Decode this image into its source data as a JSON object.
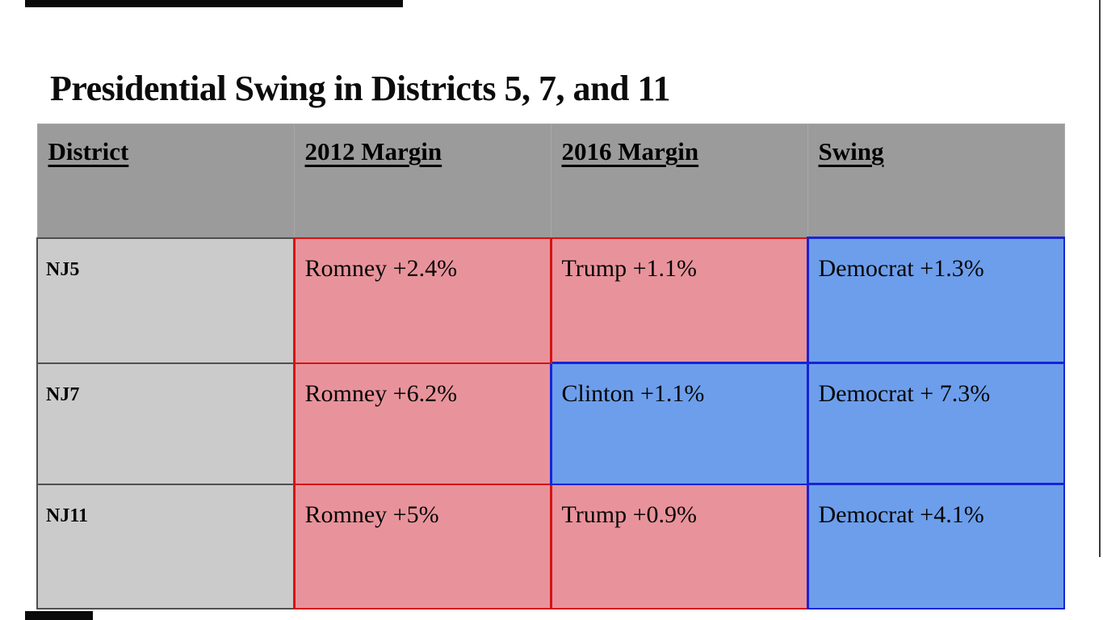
{
  "slide": {
    "title": "Presidential Swing in Districts 5, 7, and 11"
  },
  "table": {
    "headers": [
      "District",
      "2012 Margin",
      "2016 Margin",
      "Swing"
    ],
    "rows": [
      {
        "district": "NJ5",
        "cells": [
          {
            "text": "Romney +2.4%",
            "color": "red"
          },
          {
            "text": "Trump +1.1%",
            "color": "red"
          },
          {
            "text": "Democrat +1.3%",
            "color": "blue"
          }
        ]
      },
      {
        "district": "NJ7",
        "cells": [
          {
            "text": "Romney +6.2%",
            "color": "red"
          },
          {
            "text": "Clinton +1.1%",
            "color": "blue"
          },
          {
            "text": "Democrat + 7.3%",
            "color": "blue"
          }
        ]
      },
      {
        "district": "NJ11",
        "cells": [
          {
            "text": "Romney +5%",
            "color": "red"
          },
          {
            "text": "Trump +0.9%",
            "color": "red"
          },
          {
            "text": "Democrat +4.1%",
            "color": "blue"
          }
        ]
      }
    ]
  },
  "colors": {
    "republican_cell": "#e8939b",
    "republican_border": "#d61313",
    "democrat_cell": "#6d9eeb",
    "democrat_border": "#1724d6",
    "header_bg": "#9b9b9b",
    "district_bg": "#cbcbcb",
    "district_border": "#4f4f4f",
    "accent_bar": "#0a0a0a"
  }
}
